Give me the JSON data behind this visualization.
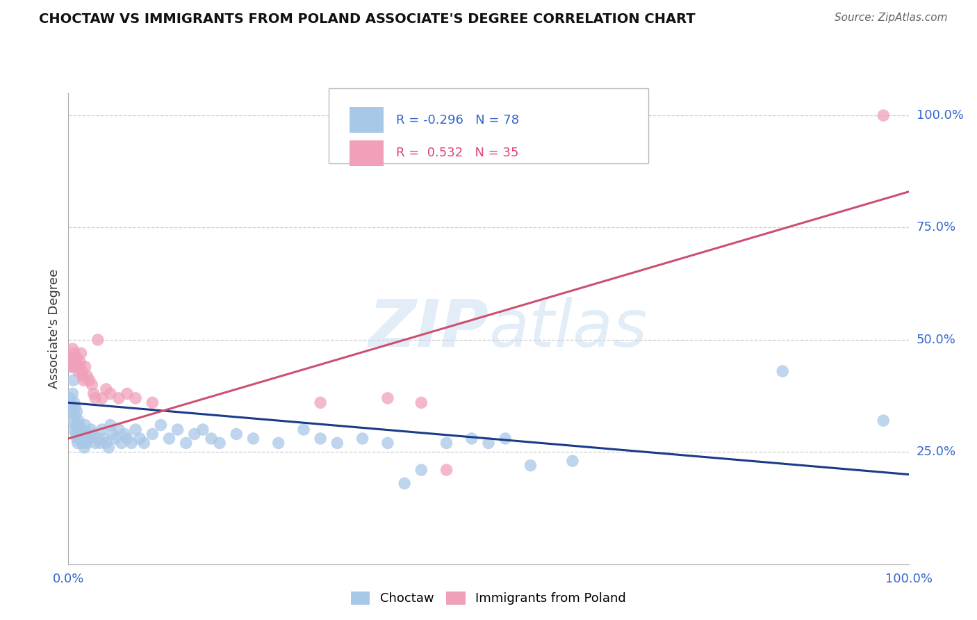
{
  "title": "CHOCTAW VS IMMIGRANTS FROM POLAND ASSOCIATE'S DEGREE CORRELATION CHART",
  "source": "Source: ZipAtlas.com",
  "ylabel": "Associate's Degree",
  "blue_R": -0.296,
  "blue_N": 78,
  "pink_R": 0.532,
  "pink_N": 35,
  "blue_color": "#a8c8e8",
  "pink_color": "#f0a0b8",
  "blue_line_color": "#1a3a8a",
  "pink_line_color": "#cc5070",
  "blue_line_slope": -0.16,
  "blue_line_intercept": 0.36,
  "pink_line_slope": 0.55,
  "pink_line_intercept": 0.28,
  "ytick_positions": [
    0.25,
    0.5,
    0.75,
    1.0
  ],
  "ytick_labels": [
    "25.0%",
    "50.0%",
    "75.0%",
    "100.0%"
  ],
  "watermark_text": "ZIPatlas",
  "legend_entries": [
    "Choctaw",
    "Immigrants from Poland"
  ],
  "blue_x": [
    0.002,
    0.003,
    0.004,
    0.005,
    0.005,
    0.006,
    0.006,
    0.007,
    0.007,
    0.008,
    0.008,
    0.009,
    0.009,
    0.01,
    0.01,
    0.011,
    0.011,
    0.012,
    0.013,
    0.013,
    0.014,
    0.015,
    0.016,
    0.017,
    0.018,
    0.019,
    0.02,
    0.021,
    0.022,
    0.023,
    0.025,
    0.027,
    0.03,
    0.032,
    0.035,
    0.038,
    0.04,
    0.042,
    0.045,
    0.048,
    0.05,
    0.053,
    0.056,
    0.06,
    0.063,
    0.067,
    0.07,
    0.075,
    0.08,
    0.085,
    0.09,
    0.1,
    0.11,
    0.12,
    0.13,
    0.14,
    0.15,
    0.16,
    0.17,
    0.18,
    0.2,
    0.22,
    0.25,
    0.28,
    0.3,
    0.32,
    0.35,
    0.38,
    0.4,
    0.42,
    0.45,
    0.48,
    0.5,
    0.52,
    0.55,
    0.6,
    0.85,
    0.97
  ],
  "blue_y": [
    0.37,
    0.35,
    0.44,
    0.32,
    0.38,
    0.34,
    0.41,
    0.3,
    0.36,
    0.33,
    0.35,
    0.29,
    0.31,
    0.28,
    0.34,
    0.3,
    0.27,
    0.32,
    0.29,
    0.31,
    0.28,
    0.3,
    0.27,
    0.29,
    0.28,
    0.26,
    0.31,
    0.28,
    0.27,
    0.29,
    0.28,
    0.3,
    0.29,
    0.27,
    0.28,
    0.27,
    0.3,
    0.28,
    0.27,
    0.26,
    0.31,
    0.29,
    0.28,
    0.3,
    0.27,
    0.29,
    0.28,
    0.27,
    0.3,
    0.28,
    0.27,
    0.29,
    0.31,
    0.28,
    0.3,
    0.27,
    0.29,
    0.3,
    0.28,
    0.27,
    0.29,
    0.28,
    0.27,
    0.3,
    0.28,
    0.27,
    0.28,
    0.27,
    0.18,
    0.21,
    0.27,
    0.28,
    0.27,
    0.28,
    0.22,
    0.23,
    0.43,
    0.32
  ],
  "pink_x": [
    0.003,
    0.004,
    0.005,
    0.006,
    0.007,
    0.008,
    0.009,
    0.01,
    0.011,
    0.012,
    0.013,
    0.014,
    0.015,
    0.016,
    0.017,
    0.018,
    0.02,
    0.022,
    0.025,
    0.028,
    0.03,
    0.032,
    0.035,
    0.04,
    0.045,
    0.05,
    0.06,
    0.07,
    0.08,
    0.1,
    0.3,
    0.38,
    0.42,
    0.45,
    0.97
  ],
  "pink_y": [
    0.44,
    0.46,
    0.48,
    0.46,
    0.47,
    0.44,
    0.45,
    0.46,
    0.44,
    0.43,
    0.44,
    0.45,
    0.47,
    0.43,
    0.42,
    0.41,
    0.44,
    0.42,
    0.41,
    0.4,
    0.38,
    0.37,
    0.5,
    0.37,
    0.39,
    0.38,
    0.37,
    0.38,
    0.37,
    0.36,
    0.36,
    0.37,
    0.36,
    0.21,
    1.0
  ]
}
